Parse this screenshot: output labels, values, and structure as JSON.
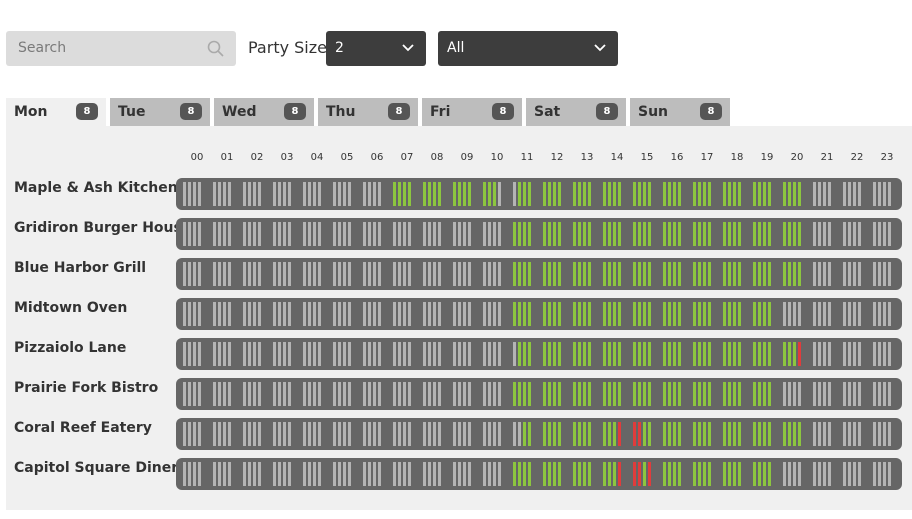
{
  "search": {
    "placeholder": "Search",
    "icon": "search-icon"
  },
  "party": {
    "label": "Party Size",
    "value": "2"
  },
  "filter": {
    "value": "All"
  },
  "tabs": [
    {
      "label": "Mon",
      "count": "8",
      "active": true
    },
    {
      "label": "Tue",
      "count": "8",
      "active": false
    },
    {
      "label": "Wed",
      "count": "8",
      "active": false
    },
    {
      "label": "Thu",
      "count": "8",
      "active": false
    },
    {
      "label": "Fri",
      "count": "8",
      "active": false
    },
    {
      "label": "Sat",
      "count": "8",
      "active": false
    },
    {
      "label": "Sun",
      "count": "8",
      "active": false
    }
  ],
  "hours": [
    "00",
    "01",
    "02",
    "03",
    "04",
    "05",
    "06",
    "07",
    "08",
    "09",
    "10",
    "11",
    "12",
    "13",
    "14",
    "15",
    "16",
    "17",
    "18",
    "19",
    "20",
    "21",
    "22",
    "23"
  ],
  "colors": {
    "available": "#8cc63f",
    "booked": "#e03c3c",
    "closed": "#b4b4b4",
    "track": "#666666"
  },
  "restaurants": [
    {
      "name": "Maple & Ash Kitchen",
      "slots": "0000000000000000000000000000222222222222222222220000022222222222222222222222222222222222222222222222222222222222222222222222222222222222222222222222222222222222222222222222222222222222222222222222222222222222222222222222222222222222222222"
    },
    {
      "name": "Gridiron Burger House",
      "slots": ""
    },
    {
      "name": "Blue Harbor Grill",
      "slots": ""
    },
    {
      "name": "Midtown Oven",
      "slots": ""
    },
    {
      "name": "Pizzaiolo Lane",
      "slots": ""
    },
    {
      "name": "Prairie Fork Bistro",
      "slots": ""
    },
    {
      "name": "Coral Reef Eatery",
      "slots": ""
    },
    {
      "name": "Capitol Square Diner",
      "slots": ""
    }
  ],
  "availability": [
    {
      "open": [
        7,
        21
      ],
      "gap": [
        10.75,
        11.25
      ],
      "booked": []
    },
    {
      "open": [
        11,
        21
      ],
      "gap": [],
      "booked": []
    },
    {
      "open": [
        11,
        21
      ],
      "gap": [],
      "booked": []
    },
    {
      "open": [
        11,
        20
      ],
      "gap": [],
      "booked": []
    },
    {
      "open": [
        11.25,
        20.75
      ],
      "gap": [],
      "booked": [
        [
          20.75,
          21
        ]
      ]
    },
    {
      "open": [
        11,
        20
      ],
      "gap": [],
      "booked": []
    },
    {
      "open": [
        11.5,
        21
      ],
      "gap": [],
      "booked": [
        [
          14.75,
          15.5
        ]
      ]
    },
    {
      "open": [
        11,
        20
      ],
      "gap": [],
      "booked": [
        [
          14.75,
          15.5
        ],
        [
          15.75,
          16
        ]
      ]
    }
  ]
}
